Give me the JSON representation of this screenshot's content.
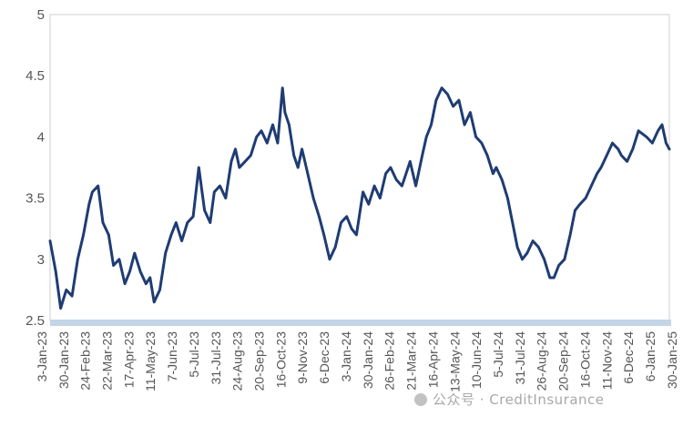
{
  "chart_data": {
    "type": "line",
    "title": "",
    "xlabel": "",
    "ylabel": "",
    "ylim": [
      2.5,
      5
    ],
    "y_ticks": [
      "2.5",
      "3",
      "3.5",
      "4",
      "4.5",
      "5"
    ],
    "grid": false,
    "legend": "none",
    "x_tick_labels": [
      "3-Jan-23",
      "30-Jan-23",
      "24-Feb-23",
      "22-Mar-23",
      "17-Apr-23",
      "11-May-23",
      "7-Jun-23",
      "5-Jul-23",
      "31-Jul-23",
      "24-Aug-23",
      "20-Sep-23",
      "16-Oct-23",
      "9-Nov-23",
      "6-Dec-23",
      "3-Jan-24",
      "30-Jan-24",
      "26-Feb-24",
      "21-Mar-24",
      "16-Apr-24",
      "13-May-24",
      "10-Jun-24",
      "5-Jul-24",
      "31-Jul-24",
      "26-Aug-24",
      "20-Sep-24",
      "16-Oct-24",
      "11-Nov-24",
      "6-Dec-24",
      "6-Jan-25",
      "30-Jan-25"
    ],
    "series": [
      {
        "color": "#1f3c73",
        "x": [
          "2023-01-03",
          "2023-01-10",
          "2023-01-16",
          "2023-01-23",
          "2023-01-30",
          "2023-02-06",
          "2023-02-13",
          "2023-02-20",
          "2023-02-24",
          "2023-03-03",
          "2023-03-09",
          "2023-03-16",
          "2023-03-22",
          "2023-03-29",
          "2023-04-05",
          "2023-04-11",
          "2023-04-17",
          "2023-04-24",
          "2023-05-01",
          "2023-05-06",
          "2023-05-11",
          "2023-05-18",
          "2023-05-25",
          "2023-06-01",
          "2023-06-07",
          "2023-06-14",
          "2023-06-21",
          "2023-06-28",
          "2023-07-05",
          "2023-07-12",
          "2023-07-19",
          "2023-07-24",
          "2023-07-31",
          "2023-08-07",
          "2023-08-14",
          "2023-08-19",
          "2023-08-24",
          "2023-08-31",
          "2023-09-07",
          "2023-09-14",
          "2023-09-20",
          "2023-09-27",
          "2023-10-04",
          "2023-10-10",
          "2023-10-16",
          "2023-10-19",
          "2023-10-24",
          "2023-10-30",
          "2023-11-04",
          "2023-11-09",
          "2023-11-16",
          "2023-11-23",
          "2023-11-30",
          "2023-12-06",
          "2023-12-13",
          "2023-12-20",
          "2023-12-27",
          "2024-01-03",
          "2024-01-09",
          "2024-01-15",
          "2024-01-23",
          "2024-01-30",
          "2024-02-06",
          "2024-02-13",
          "2024-02-20",
          "2024-02-26",
          "2024-03-04",
          "2024-03-11",
          "2024-03-16",
          "2024-03-21",
          "2024-03-28",
          "2024-04-05",
          "2024-04-10",
          "2024-04-16",
          "2024-04-22",
          "2024-04-29",
          "2024-05-06",
          "2024-05-13",
          "2024-05-20",
          "2024-05-27",
          "2024-06-03",
          "2024-06-10",
          "2024-06-17",
          "2024-06-24",
          "2024-07-01",
          "2024-07-05",
          "2024-07-12",
          "2024-07-19",
          "2024-07-25",
          "2024-07-31",
          "2024-08-06",
          "2024-08-12",
          "2024-08-19",
          "2024-08-26",
          "2024-09-02",
          "2024-09-09",
          "2024-09-14",
          "2024-09-20",
          "2024-09-27",
          "2024-10-04",
          "2024-10-10",
          "2024-10-16",
          "2024-10-23",
          "2024-10-30",
          "2024-11-06",
          "2024-11-11",
          "2024-11-18",
          "2024-11-25",
          "2024-12-02",
          "2024-12-06",
          "2024-12-13",
          "2024-12-20",
          "2024-12-27",
          "2025-01-06",
          "2025-01-13",
          "2025-01-20",
          "2025-01-25",
          "2025-01-30",
          "2025-02-03"
        ],
        "y": [
          3.15,
          2.9,
          2.6,
          2.75,
          2.7,
          3.0,
          3.2,
          3.45,
          3.55,
          3.6,
          3.3,
          3.2,
          2.95,
          3.0,
          2.8,
          2.9,
          3.05,
          2.9,
          2.8,
          2.85,
          2.65,
          2.75,
          3.05,
          3.2,
          3.3,
          3.15,
          3.3,
          3.35,
          3.75,
          3.4,
          3.3,
          3.55,
          3.6,
          3.5,
          3.8,
          3.9,
          3.75,
          3.8,
          3.85,
          4.0,
          4.05,
          3.95,
          4.1,
          3.95,
          4.4,
          4.2,
          4.1,
          3.85,
          3.75,
          3.9,
          3.7,
          3.5,
          3.35,
          3.2,
          3.0,
          3.1,
          3.3,
          3.35,
          3.25,
          3.2,
          3.55,
          3.45,
          3.6,
          3.5,
          3.7,
          3.75,
          3.65,
          3.6,
          3.7,
          3.8,
          3.6,
          3.85,
          4.0,
          4.1,
          4.3,
          4.4,
          4.35,
          4.25,
          4.3,
          4.1,
          4.2,
          4.0,
          3.95,
          3.85,
          3.7,
          3.75,
          3.65,
          3.5,
          3.3,
          3.1,
          3.0,
          3.05,
          3.15,
          3.1,
          3.0,
          2.85,
          2.85,
          2.95,
          3.0,
          3.2,
          3.4,
          3.45,
          3.5,
          3.6,
          3.7,
          3.75,
          3.85,
          3.95,
          3.9,
          3.85,
          3.8,
          3.9,
          4.05,
          4.0,
          3.95,
          4.05,
          4.1,
          3.95,
          3.9
        ]
      }
    ]
  },
  "watermark": {
    "icon": "wechat-icon",
    "text": "公众号 · CreditInsurance"
  }
}
